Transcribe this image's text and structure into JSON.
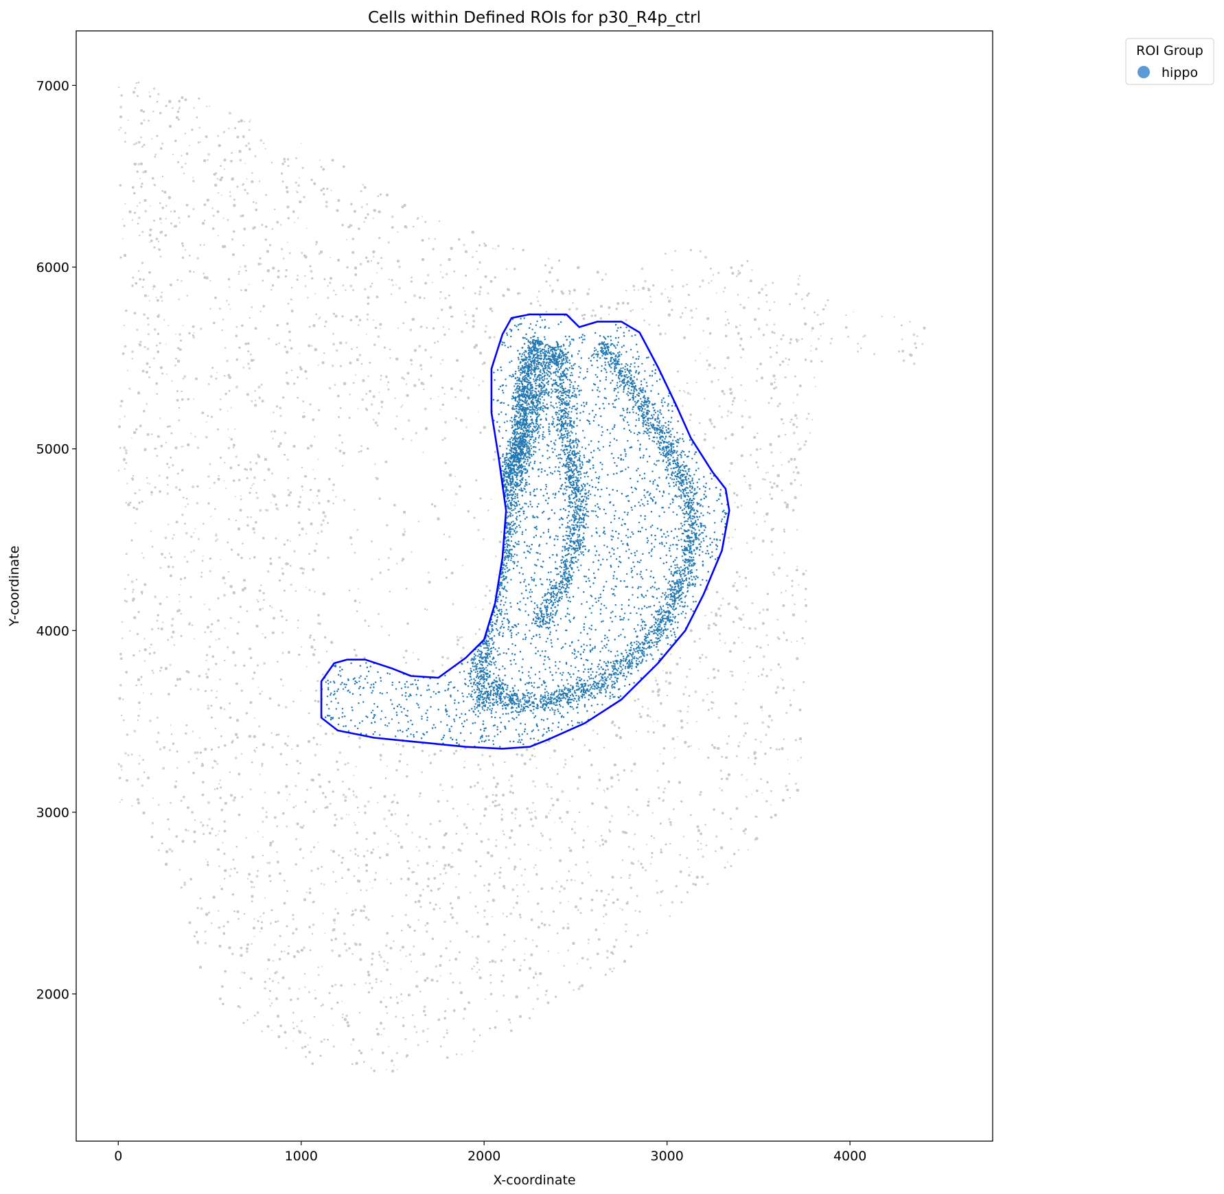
{
  "chart_data": {
    "type": "scatter",
    "title": "Cells within Defined ROIs for p30_R4p_ctrl",
    "xlabel": "X-coordinate",
    "ylabel": "Y-coordinate",
    "xlim": [
      -230,
      4780
    ],
    "ylim": [
      1190,
      7300
    ],
    "xticks": [
      0,
      1000,
      2000,
      3000,
      4000
    ],
    "yticks": [
      2000,
      3000,
      4000,
      5000,
      6000,
      7000
    ],
    "grid": false,
    "legend": {
      "title": "ROI Group",
      "placement": "outside-top-right",
      "entries": [
        {
          "label": "hippo",
          "color": "#5b9bd5"
        }
      ]
    },
    "background_cells": {
      "color": "#c8c8c8",
      "count_approx": 40000,
      "outline": [
        [
          0,
          7030
        ],
        [
          200,
          7010
        ],
        [
          400,
          6960
        ],
        [
          550,
          6900
        ],
        [
          700,
          6820
        ],
        [
          850,
          6760
        ],
        [
          1000,
          6700
        ],
        [
          1150,
          6620
        ],
        [
          1250,
          6540
        ],
        [
          1300,
          6490
        ],
        [
          1400,
          6440
        ],
        [
          1550,
          6380
        ],
        [
          1700,
          6300
        ],
        [
          1850,
          6230
        ],
        [
          2000,
          6170
        ],
        [
          2150,
          6120
        ],
        [
          2300,
          6060
        ],
        [
          2500,
          6030
        ],
        [
          2700,
          6010
        ],
        [
          2800,
          5950
        ],
        [
          2900,
          6040
        ],
        [
          3050,
          6110
        ],
        [
          3250,
          6090
        ],
        [
          3500,
          6030
        ],
        [
          3700,
          5970
        ],
        [
          3870,
          5870
        ],
        [
          4000,
          5790
        ],
        [
          4200,
          5740
        ],
        [
          4400,
          5690
        ],
        [
          4500,
          5540
        ],
        [
          4400,
          5450
        ],
        [
          4200,
          5480
        ],
        [
          3900,
          5560
        ],
        [
          3850,
          5350
        ],
        [
          3780,
          5050
        ],
        [
          3760,
          4700
        ],
        [
          3770,
          4400
        ],
        [
          3760,
          4100
        ],
        [
          3770,
          3700
        ],
        [
          3780,
          3450
        ],
        [
          3760,
          3200
        ],
        [
          3700,
          3050
        ],
        [
          3500,
          2850
        ],
        [
          3250,
          2600
        ],
        [
          3000,
          2350
        ],
        [
          2750,
          2150
        ],
        [
          2500,
          2000
        ],
        [
          2300,
          1900
        ],
        [
          2100,
          1760
        ],
        [
          1900,
          1660
        ],
        [
          1700,
          1620
        ],
        [
          1500,
          1570
        ],
        [
          1300,
          1560
        ],
        [
          1100,
          1600
        ],
        [
          900,
          1680
        ],
        [
          700,
          1800
        ],
        [
          550,
          1950
        ],
        [
          420,
          2200
        ],
        [
          350,
          2550
        ],
        [
          250,
          2700
        ],
        [
          120,
          2950
        ],
        [
          0,
          3050
        ]
      ],
      "holes": [
        [
          [
            1200,
            3800
          ],
          [
            1100,
            4100
          ],
          [
            1120,
            4500
          ],
          [
            1300,
            4900
          ],
          [
            1500,
            5100
          ],
          [
            1700,
            5200
          ],
          [
            1900,
            5150
          ],
          [
            2050,
            4950
          ],
          [
            2100,
            4600
          ],
          [
            2000,
            4200
          ],
          [
            1800,
            3900
          ],
          [
            1500,
            3780
          ]
        ]
      ]
    },
    "series": [
      {
        "name": "hippo",
        "color": "#1f77b4",
        "count_approx": 9000,
        "boundary": [
          [
            2150,
            5720
          ],
          [
            2250,
            5740
          ],
          [
            2450,
            5740
          ],
          [
            2520,
            5670
          ],
          [
            2620,
            5700
          ],
          [
            2750,
            5700
          ],
          [
            2850,
            5640
          ],
          [
            2950,
            5450
          ],
          [
            3050,
            5240
          ],
          [
            3130,
            5060
          ],
          [
            3250,
            4870
          ],
          [
            3320,
            4780
          ],
          [
            3340,
            4660
          ],
          [
            3300,
            4440
          ],
          [
            3200,
            4200
          ],
          [
            3100,
            4000
          ],
          [
            2950,
            3820
          ],
          [
            2750,
            3620
          ],
          [
            2550,
            3490
          ],
          [
            2350,
            3400
          ],
          [
            2250,
            3360
          ],
          [
            2100,
            3350
          ],
          [
            1900,
            3360
          ],
          [
            1600,
            3390
          ],
          [
            1400,
            3410
          ],
          [
            1200,
            3450
          ],
          [
            1110,
            3520
          ],
          [
            1110,
            3720
          ],
          [
            1180,
            3820
          ],
          [
            1250,
            3840
          ],
          [
            1350,
            3840
          ],
          [
            1500,
            3790
          ],
          [
            1600,
            3750
          ],
          [
            1750,
            3740
          ],
          [
            1900,
            3850
          ],
          [
            2000,
            3950
          ],
          [
            2060,
            4150
          ],
          [
            2100,
            4400
          ],
          [
            2120,
            4660
          ],
          [
            2080,
            4950
          ],
          [
            2040,
            5200
          ],
          [
            2040,
            5440
          ],
          [
            2100,
            5630
          ]
        ],
        "ca_layer": [
          [
            2000,
            3560
          ],
          [
            1980,
            3680
          ],
          [
            1990,
            3860
          ],
          [
            2020,
            4060
          ],
          [
            2060,
            4250
          ],
          [
            2110,
            4500
          ],
          [
            2150,
            4750
          ],
          [
            2200,
            4950
          ],
          [
            2260,
            5150
          ],
          [
            2300,
            5350
          ],
          [
            2330,
            5480
          ],
          [
            2380,
            5560
          ],
          [
            2420,
            5480
          ],
          [
            2430,
            5300
          ],
          [
            2450,
            5100
          ],
          [
            2480,
            4900
          ],
          [
            2520,
            4700
          ],
          [
            2500,
            4500
          ],
          [
            2450,
            4320
          ],
          [
            2380,
            4180
          ],
          [
            2300,
            4020
          ]
        ],
        "dg_layer": [
          [
            2030,
            4700
          ],
          [
            2090,
            4800
          ],
          [
            2160,
            4900
          ],
          [
            2190,
            5080
          ],
          [
            2210,
            5300
          ],
          [
            2250,
            5500
          ],
          [
            2300,
            5600
          ]
        ],
        "outer_layer": [
          [
            2030,
            3700
          ],
          [
            2150,
            3610
          ],
          [
            2300,
            3600
          ],
          [
            2450,
            3640
          ],
          [
            2650,
            3720
          ],
          [
            2800,
            3840
          ],
          [
            2930,
            3980
          ],
          [
            3050,
            4180
          ],
          [
            3120,
            4400
          ],
          [
            3150,
            4600
          ],
          [
            3080,
            4860
          ],
          [
            2970,
            5060
          ],
          [
            2850,
            5260
          ],
          [
            2730,
            5460
          ],
          [
            2630,
            5580
          ]
        ]
      }
    ]
  }
}
